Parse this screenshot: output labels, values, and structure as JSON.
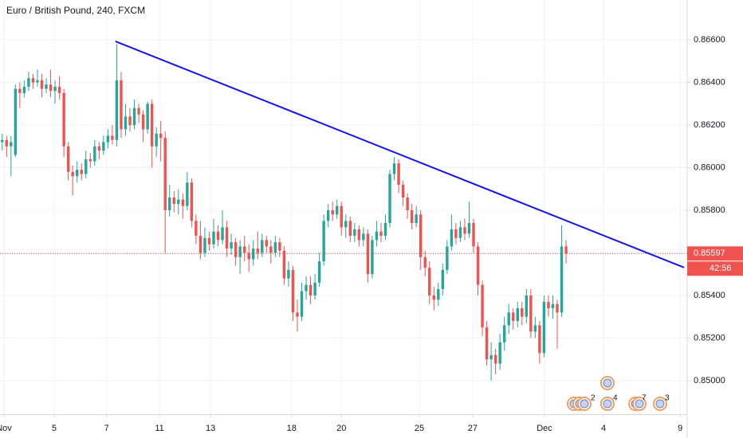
{
  "chart_data": {
    "type": "candlestick",
    "title": "Euro / British Pound, 240, FXCM",
    "up_color": "#26a69a",
    "down_color": "#ef5350",
    "open": [
      0.8612,
      0.8613,
      0.861,
      0.8606,
      0.8637,
      0.8635,
      0.8638,
      0.8642,
      0.864,
      0.8641,
      0.8637,
      0.8639,
      0.8636,
      0.8638,
      0.8635,
      0.861,
      0.8598,
      0.8596,
      0.8599,
      0.8597,
      0.8604,
      0.8603,
      0.861,
      0.8608,
      0.8612,
      0.8615,
      0.8613,
      0.8641,
      0.8618,
      0.8624,
      0.862,
      0.8628,
      0.8625,
      0.8618,
      0.863,
      0.861,
      0.8616,
      0.8614,
      0.858,
      0.8586,
      0.8583,
      0.8585,
      0.8582,
      0.8593,
      0.8575,
      0.8568,
      0.856,
      0.8567,
      0.8564,
      0.857,
      0.8566,
      0.8572,
      0.8562,
      0.8565,
      0.8558,
      0.8563,
      0.856,
      0.8557,
      0.8562,
      0.856,
      0.8566,
      0.8563,
      0.856,
      0.8565,
      0.8561,
      0.8548,
      0.8552,
      0.8532,
      0.853,
      0.8542,
      0.8545,
      0.854,
      0.8546,
      0.8556,
      0.8575,
      0.858,
      0.8578,
      0.8582,
      0.8572,
      0.8575,
      0.8568,
      0.8571,
      0.8566,
      0.8569,
      0.855,
      0.8566,
      0.857,
      0.8568,
      0.8574,
      0.8597,
      0.8602,
      0.8592,
      0.8586,
      0.858,
      0.8574,
      0.8578,
      0.8558,
      0.8553,
      0.854,
      0.8538,
      0.8543,
      0.8552,
      0.8563,
      0.8571,
      0.8567,
      0.8572,
      0.8569,
      0.8574,
      0.8563,
      0.8545,
      0.8525,
      0.851,
      0.8512,
      0.8508,
      0.8518,
      0.8526,
      0.8532,
      0.8528,
      0.8534,
      0.853,
      0.854,
      0.8523,
      0.8526,
      0.8513,
      0.8537,
      0.8534,
      0.8536,
      0.8532,
      0.8563
    ],
    "high": [
      0.8616,
      0.8615,
      0.8615,
      0.8639,
      0.864,
      0.8641,
      0.8645,
      0.8644,
      0.8646,
      0.8644,
      0.8642,
      0.8646,
      0.8641,
      0.8643,
      0.8637,
      0.8612,
      0.8601,
      0.8603,
      0.8602,
      0.8608,
      0.8607,
      0.8613,
      0.8612,
      0.8615,
      0.8618,
      0.862,
      0.8658,
      0.8645,
      0.863,
      0.8628,
      0.8632,
      0.863,
      0.8627,
      0.8631,
      0.8632,
      0.8619,
      0.8622,
      0.8617,
      0.8592,
      0.8589,
      0.859,
      0.8588,
      0.8598,
      0.8595,
      0.8578,
      0.8575,
      0.8572,
      0.857,
      0.8576,
      0.8573,
      0.858,
      0.8575,
      0.8569,
      0.8567,
      0.8566,
      0.8568,
      0.8564,
      0.8566,
      0.857,
      0.8569,
      0.8568,
      0.8566,
      0.8568,
      0.8567,
      0.8563,
      0.8556,
      0.8554,
      0.8538,
      0.8546,
      0.8549,
      0.8549,
      0.855,
      0.856,
      0.8578,
      0.8583,
      0.8584,
      0.8585,
      0.8584,
      0.8578,
      0.8577,
      0.8574,
      0.8573,
      0.8572,
      0.8571,
      0.8568,
      0.8575,
      0.8574,
      0.8578,
      0.8599,
      0.8605,
      0.8604,
      0.8594,
      0.8588,
      0.8583,
      0.8582,
      0.858,
      0.8561,
      0.8556,
      0.8544,
      0.8546,
      0.8555,
      0.8566,
      0.8578,
      0.8574,
      0.8575,
      0.8576,
      0.8584,
      0.8576,
      0.8565,
      0.8547,
      0.8528,
      0.8518,
      0.8515,
      0.8522,
      0.853,
      0.8536,
      0.8534,
      0.8537,
      0.8537,
      0.8543,
      0.8543,
      0.853,
      0.8528,
      0.854,
      0.854,
      0.854,
      0.8538,
      0.8573,
      0.8566
    ],
    "low": [
      0.8608,
      0.8605,
      0.8596,
      0.8605,
      0.8628,
      0.8633,
      0.8636,
      0.8637,
      0.8638,
      0.8633,
      0.8635,
      0.8633,
      0.863,
      0.8632,
      0.8605,
      0.8594,
      0.8587,
      0.8593,
      0.8594,
      0.8595,
      0.86,
      0.8601,
      0.8604,
      0.8606,
      0.8609,
      0.8611,
      0.861,
      0.8614,
      0.8615,
      0.8617,
      0.8618,
      0.8621,
      0.8612,
      0.8616,
      0.86,
      0.8605,
      0.8603,
      0.856,
      0.8577,
      0.8579,
      0.8578,
      0.8576,
      0.858,
      0.8572,
      0.8564,
      0.8557,
      0.8558,
      0.8561,
      0.8562,
      0.8563,
      0.8564,
      0.8558,
      0.8559,
      0.8554,
      0.855,
      0.8556,
      0.8551,
      0.8554,
      0.8557,
      0.8558,
      0.856,
      0.8555,
      0.8558,
      0.8558,
      0.8545,
      0.8544,
      0.8528,
      0.8523,
      0.8528,
      0.8538,
      0.8536,
      0.8538,
      0.8544,
      0.8554,
      0.8572,
      0.8575,
      0.8576,
      0.8568,
      0.8567,
      0.8565,
      0.8565,
      0.8563,
      0.8563,
      0.8546,
      0.8548,
      0.8563,
      0.8565,
      0.8566,
      0.8572,
      0.8594,
      0.8588,
      0.8582,
      0.8576,
      0.8571,
      0.8572,
      0.8552,
      0.8549,
      0.8536,
      0.8533,
      0.8535,
      0.854,
      0.855,
      0.8561,
      0.8564,
      0.8565,
      0.8566,
      0.8567,
      0.856,
      0.854,
      0.8521,
      0.8507,
      0.85,
      0.8503,
      0.8505,
      0.8514,
      0.8522,
      0.8524,
      0.8525,
      0.8526,
      0.8527,
      0.852,
      0.852,
      0.8508,
      0.8511,
      0.853,
      0.8529,
      0.8515,
      0.853,
      0.8555
    ],
    "close": [
      0.8613,
      0.861,
      0.8612,
      0.8637,
      0.8635,
      0.8638,
      0.8642,
      0.864,
      0.8641,
      0.8637,
      0.8639,
      0.8636,
      0.8638,
      0.8635,
      0.861,
      0.8598,
      0.8596,
      0.8599,
      0.8597,
      0.8604,
      0.8603,
      0.861,
      0.8608,
      0.8612,
      0.8615,
      0.8613,
      0.8641,
      0.8618,
      0.8624,
      0.862,
      0.8628,
      0.8625,
      0.8618,
      0.863,
      0.861,
      0.8616,
      0.8614,
      0.858,
      0.8586,
      0.8583,
      0.8585,
      0.8582,
      0.8593,
      0.8575,
      0.8568,
      0.856,
      0.8567,
      0.8564,
      0.857,
      0.8566,
      0.8572,
      0.8562,
      0.8565,
      0.8558,
      0.8563,
      0.856,
      0.8557,
      0.8562,
      0.856,
      0.8566,
      0.8563,
      0.856,
      0.8565,
      0.8561,
      0.8548,
      0.8552,
      0.8532,
      0.853,
      0.8542,
      0.8545,
      0.854,
      0.8546,
      0.8556,
      0.8575,
      0.858,
      0.8578,
      0.8582,
      0.8572,
      0.8575,
      0.8568,
      0.8571,
      0.8566,
      0.8569,
      0.855,
      0.8566,
      0.857,
      0.8568,
      0.8574,
      0.8597,
      0.8602,
      0.8592,
      0.8586,
      0.858,
      0.8574,
      0.8578,
      0.8558,
      0.8553,
      0.854,
      0.8538,
      0.8543,
      0.8552,
      0.8563,
      0.8571,
      0.8567,
      0.8572,
      0.8569,
      0.8574,
      0.8563,
      0.8545,
      0.8525,
      0.851,
      0.8512,
      0.8508,
      0.8518,
      0.8526,
      0.8532,
      0.8528,
      0.8534,
      0.853,
      0.854,
      0.8523,
      0.8526,
      0.8513,
      0.8537,
      0.8534,
      0.8536,
      0.8532,
      0.8563,
      0.85597
    ],
    "xlim": [
      -0.5,
      155.5
    ],
    "xticks": [
      {
        "value": 0.4,
        "label": "Nov"
      },
      {
        "value": 11.8,
        "label": "5"
      },
      {
        "value": 23.7,
        "label": "7"
      },
      {
        "value": 35.7,
        "label": "11"
      },
      {
        "value": 47.3,
        "label": "13"
      },
      {
        "value": 65.7,
        "label": "18"
      },
      {
        "value": 77,
        "label": "20"
      },
      {
        "value": 94.7,
        "label": "25"
      },
      {
        "value": 106.8,
        "label": "27"
      },
      {
        "value": 123.1,
        "label": "Dec"
      },
      {
        "value": 136.5,
        "label": "4"
      },
      {
        "value": 153.9,
        "label": "9"
      }
    ],
    "ylim": [
      0.84843,
      0.86787
    ],
    "yticks": [
      {
        "value": 0.85,
        "label": "0.85000"
      },
      {
        "value": 0.852,
        "label": "0.85200"
      },
      {
        "value": 0.854,
        "label": "0.85400"
      },
      {
        "value": 0.856,
        "label": "0.85600"
      },
      {
        "value": 0.858,
        "label": "0.85800"
      },
      {
        "value": 0.86,
        "label": "0.86000"
      },
      {
        "value": 0.862,
        "label": "0.86200"
      },
      {
        "value": 0.864,
        "label": "0.86400"
      },
      {
        "value": 0.866,
        "label": "0.86600"
      }
    ],
    "grid": true,
    "trendline": {
      "x": [
        25.7,
        154.8
      ],
      "y": [
        0.86593,
        0.85531
      ],
      "color": "#1414e6"
    },
    "last_price": {
      "value": 0.85597,
      "countdown": "42:56",
      "color": "#ef5350"
    },
    "events": [
      {
        "label": "2"
      },
      {
        "label": "4"
      },
      {
        "label": "7"
      },
      {
        "label": "3"
      }
    ]
  }
}
